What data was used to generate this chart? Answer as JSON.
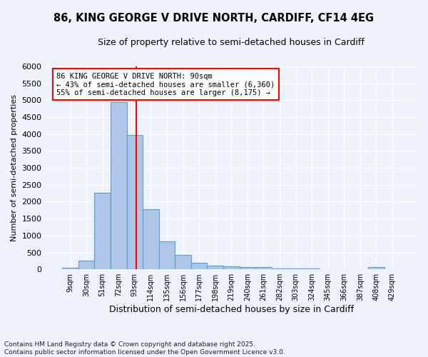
{
  "title_line1": "86, KING GEORGE V DRIVE NORTH, CARDIFF, CF14 4EG",
  "title_line2": "Size of property relative to semi-detached houses in Cardiff",
  "xlabel": "Distribution of semi-detached houses by size in Cardiff",
  "ylabel": "Number of semi-detached properties",
  "bar_labels": [
    "9sqm",
    "30sqm",
    "51sqm",
    "72sqm",
    "93sqm",
    "114sqm",
    "135sqm",
    "156sqm",
    "177sqm",
    "198sqm",
    "219sqm",
    "240sqm",
    "261sqm",
    "282sqm",
    "303sqm",
    "324sqm",
    "345sqm",
    "366sqm",
    "387sqm",
    "408sqm",
    "429sqm"
  ],
  "bar_values": [
    50,
    250,
    2270,
    4950,
    3970,
    1770,
    830,
    420,
    200,
    110,
    80,
    65,
    60,
    30,
    20,
    15,
    10,
    10,
    10,
    60,
    0
  ],
  "bar_color": "#aec6e8",
  "bar_edge_color": "#5a9fd4",
  "red_line_x": 4.095,
  "annotation_title": "86 KING GEORGE V DRIVE NORTH: 90sqm",
  "annotation_line2": "← 43% of semi-detached houses are smaller (6,360)",
  "annotation_line3": "55% of semi-detached houses are larger (8,175) →",
  "ylim": [
    0,
    6000
  ],
  "yticks": [
    0,
    500,
    1000,
    1500,
    2000,
    2500,
    3000,
    3500,
    4000,
    4500,
    5000,
    5500,
    6000
  ],
  "footer_line1": "Contains HM Land Registry data © Crown copyright and database right 2025.",
  "footer_line2": "Contains public sector information licensed under the Open Government Licence v3.0.",
  "bg_color": "#eef2fb",
  "grid_color": "#ffffff"
}
